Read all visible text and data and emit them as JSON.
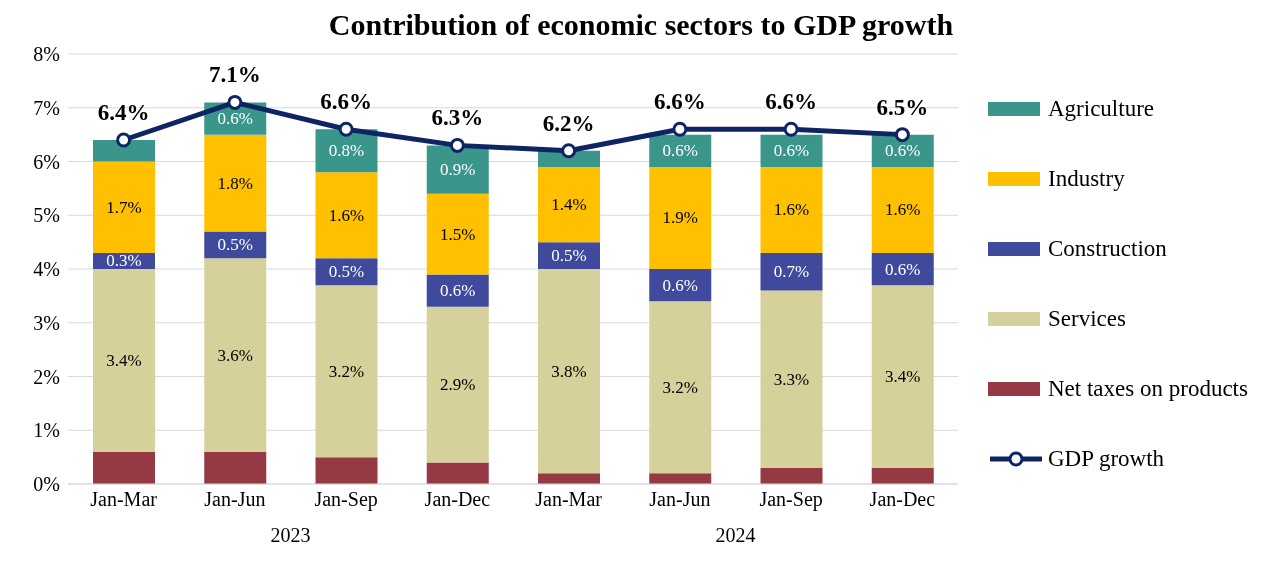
{
  "chart_data": {
    "type": "bar",
    "title": "Contribution of economic sectors to GDP growth",
    "stacked": true,
    "categories": [
      "Jan-Mar",
      "Jan-Jun",
      "Jan-Sep",
      "Jan-Dec",
      "Jan-Mar",
      "Jan-Jun",
      "Jan-Sep",
      "Jan-Dec"
    ],
    "series": [
      {
        "name": "Net taxes on products",
        "color": "#953a45",
        "values": [
          0.6,
          0.6,
          0.5,
          0.4,
          0.2,
          0.2,
          0.3,
          0.3
        ]
      },
      {
        "name": "Services",
        "color": "#d6d09a",
        "values": [
          3.4,
          3.6,
          3.2,
          2.9,
          3.8,
          3.2,
          3.3,
          3.4
        ],
        "value_labels": [
          "3.4%",
          "3.6%",
          "3.2%",
          "2.9%",
          "3.8%",
          "3.2%",
          "3.3%",
          "3.4%"
        ]
      },
      {
        "name": "Construction",
        "color": "#3f4a9c",
        "values": [
          0.3,
          0.5,
          0.5,
          0.6,
          0.5,
          0.6,
          0.7,
          0.6
        ],
        "value_labels": [
          "0.3%",
          "0.5%",
          "0.5%",
          "0.6%",
          "0.5%",
          "0.6%",
          "0.7%",
          "0.6%"
        ]
      },
      {
        "name": "Industry",
        "color": "#ffc000",
        "values": [
          1.7,
          1.8,
          1.6,
          1.5,
          1.4,
          1.9,
          1.6,
          1.6
        ],
        "value_labels": [
          "1.7%",
          "1.8%",
          "1.6%",
          "1.5%",
          "1.4%",
          "1.9%",
          "1.6%",
          "1.6%"
        ]
      },
      {
        "name": "Agriculture",
        "color": "#3a968a",
        "values": [
          0.4,
          0.6,
          0.8,
          0.9,
          0.3,
          0.6,
          0.6,
          0.6
        ],
        "value_labels": [
          null,
          "0.6%",
          "0.8%",
          "0.9%",
          null,
          "0.6%",
          "0.6%",
          "0.6%"
        ]
      },
      {
        "name": "GDP growth",
        "type": "line",
        "color": "#0e2463",
        "marker": "circle",
        "values": [
          6.4,
          7.1,
          6.6,
          6.3,
          6.2,
          6.6,
          6.6,
          6.5
        ],
        "value_labels": [
          "6.4%",
          "7.1%",
          "6.6%",
          "6.3%",
          "6.2%",
          "6.6%",
          "6.6%",
          "6.5%"
        ]
      }
    ],
    "ylim": [
      0,
      8
    ],
    "yticks": [
      {
        "value": 0,
        "label": "0%"
      },
      {
        "value": 1,
        "label": "1%"
      },
      {
        "value": 2,
        "label": "2%"
      },
      {
        "value": 3,
        "label": "3%"
      },
      {
        "value": 4,
        "label": "4%"
      },
      {
        "value": 5,
        "label": "5%"
      },
      {
        "value": 6,
        "label": "6%"
      },
      {
        "value": 7,
        "label": "7%"
      },
      {
        "value": 8,
        "label": "8%"
      }
    ],
    "grid": "y",
    "legend": "right",
    "annotations": [
      "2023",
      "2024"
    ]
  }
}
